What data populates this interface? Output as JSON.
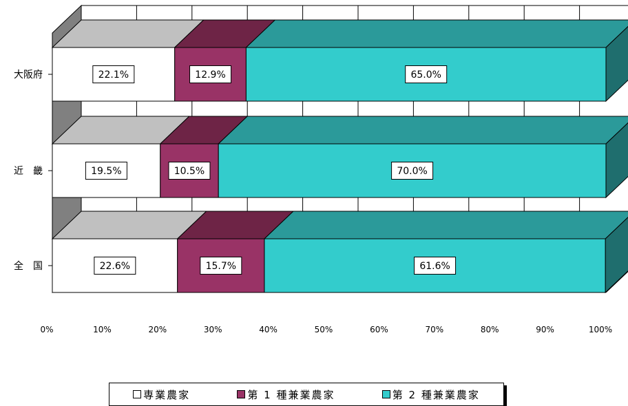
{
  "chart_data": {
    "type": "bar",
    "orientation": "horizontal",
    "stacked": true,
    "percent": true,
    "categories": [
      "大阪府",
      "近　畿",
      "全　国"
    ],
    "series": [
      {
        "name": "専業農家",
        "values": [
          22.1,
          19.5,
          22.6
        ],
        "labels": [
          "22.1%",
          "19.5%",
          "22.6%"
        ],
        "color": "#ffffff",
        "top_color": "#c0c0c0",
        "side_color": "#808080"
      },
      {
        "name": "第１種兼業農家",
        "values": [
          12.9,
          10.5,
          15.7
        ],
        "labels": [
          "12.9%",
          "10.5%",
          "15.7%"
        ],
        "color": "#993366",
        "top_color": "#6e2446",
        "side_color": "#5a1d3a"
      },
      {
        "name": "第２種兼業農家",
        "values": [
          65.0,
          70.0,
          61.6
        ],
        "labels": [
          "65.0%",
          "70.0%",
          "61.6%"
        ],
        "color": "#33cccc",
        "top_color": "#2b9a9a",
        "side_color": "#1f6e6e"
      }
    ],
    "xticks": [
      "0%",
      "10%",
      "20%",
      "30%",
      "40%",
      "50%",
      "60%",
      "70%",
      "80%",
      "90%",
      "100%"
    ],
    "xlim": [
      0,
      100
    ],
    "grid": true,
    "legend_position": "bottom",
    "wall_color": "#808080"
  },
  "legend": {
    "items": [
      "専業農家",
      "第 1 種兼業農家",
      "第 2 種兼業農家"
    ]
  }
}
